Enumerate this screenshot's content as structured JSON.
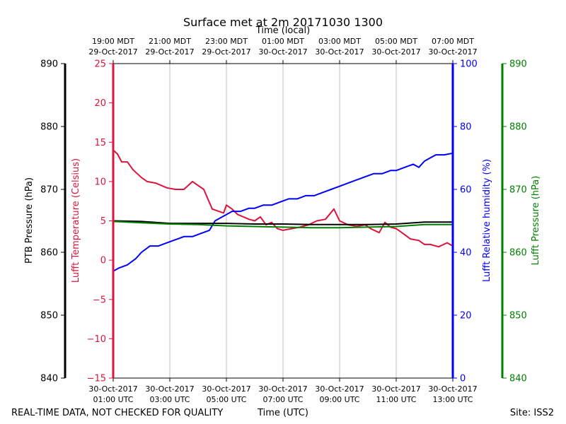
{
  "chart_data": {
    "type": "line",
    "title": "Surface met at 2m 20171030 1300",
    "top_axis_label": "Time (local)",
    "top_ticks": [
      [
        "19:00 MDT",
        "29-Oct-2017"
      ],
      [
        "21:00 MDT",
        "29-Oct-2017"
      ],
      [
        "23:00 MDT",
        "29-Oct-2017"
      ],
      [
        "01:00 MDT",
        "30-Oct-2017"
      ],
      [
        "03:00 MDT",
        "30-Oct-2017"
      ],
      [
        "05:00 MDT",
        "30-Oct-2017"
      ],
      [
        "07:00 MDT",
        "30-Oct-2017"
      ]
    ],
    "bottom_ticks": [
      [
        "30-Oct-2017",
        "01:00 UTC"
      ],
      [
        "30-Oct-2017",
        "03:00 UTC"
      ],
      [
        "30-Oct-2017",
        "05:00 UTC"
      ],
      [
        "30-Oct-2017",
        "07:00 UTC"
      ],
      [
        "30-Oct-2017",
        "09:00 UTC"
      ],
      [
        "30-Oct-2017",
        "11:00 UTC"
      ],
      [
        "30-Oct-2017",
        "13:00 UTC"
      ]
    ],
    "xlabel": "Time (UTC)",
    "xlim": [
      1,
      13
    ],
    "grid": "vertical",
    "axes": {
      "ptb": {
        "label": "PTB Pressure (hPa)",
        "color": "#000000",
        "ylim": [
          840,
          890
        ],
        "ticks": [
          840,
          850,
          860,
          870,
          880,
          890
        ]
      },
      "temp": {
        "label": "Lufft Temperature (Celsius)",
        "color": "#dc143c",
        "ylim": [
          -15,
          25
        ],
        "ticks": [
          -15,
          -10,
          -5,
          0,
          5,
          10,
          15,
          20,
          25
        ],
        "tick_labels": [
          "−15",
          "−10",
          "−5",
          "0",
          "5",
          "10",
          "15",
          "20",
          "25"
        ]
      },
      "rh": {
        "label": "Lufft Relative humidity (%)",
        "color": "#0000ff",
        "ylim": [
          0,
          100
        ],
        "ticks": [
          0,
          20,
          40,
          60,
          80,
          100
        ]
      },
      "lufft_p": {
        "label": "Lufft Pressure (hPa)",
        "color": "#008000",
        "ylim": [
          840,
          890
        ],
        "ticks": [
          840,
          850,
          860,
          870,
          880,
          890
        ]
      }
    },
    "series": [
      {
        "axis": "temp",
        "color": "#dc143c",
        "x": [
          1.0,
          1.15,
          1.3,
          1.5,
          1.7,
          2.0,
          2.2,
          2.5,
          2.9,
          3.2,
          3.5,
          3.8,
          4.2,
          4.5,
          4.9,
          5.0,
          5.2,
          5.4,
          5.6,
          5.8,
          6.0,
          6.2,
          6.4,
          6.6,
          6.8,
          7.0,
          7.3,
          7.6,
          7.9,
          8.2,
          8.5,
          8.8,
          9.0,
          9.3,
          9.6,
          9.9,
          10.1,
          10.4,
          10.6,
          10.8,
          11.0,
          11.2,
          11.5,
          11.8,
          12.0,
          12.2,
          12.5,
          12.8,
          13.0
        ],
        "y": [
          14.0,
          13.5,
          12.5,
          12.5,
          11.5,
          10.5,
          10.0,
          9.8,
          9.2,
          9.0,
          9.0,
          10.0,
          9.0,
          6.5,
          6.0,
          7.0,
          6.5,
          5.8,
          5.5,
          5.2,
          5.0,
          5.5,
          4.5,
          4.8,
          4.0,
          3.8,
          4.0,
          4.2,
          4.5,
          5.0,
          5.2,
          6.5,
          5.0,
          4.5,
          4.3,
          4.5,
          4.0,
          3.5,
          4.8,
          4.2,
          4.0,
          3.5,
          2.7,
          2.5,
          2.0,
          2.0,
          1.7,
          2.2,
          1.8
        ]
      },
      {
        "axis": "rh",
        "color": "#0000ff",
        "x": [
          1.0,
          1.2,
          1.5,
          1.8,
          2.0,
          2.3,
          2.6,
          2.9,
          3.2,
          3.5,
          3.8,
          4.1,
          4.4,
          4.6,
          4.8,
          5.0,
          5.2,
          5.5,
          5.8,
          6.0,
          6.3,
          6.6,
          6.9,
          7.2,
          7.5,
          7.8,
          8.1,
          8.4,
          8.7,
          9.0,
          9.3,
          9.6,
          9.9,
          10.2,
          10.5,
          10.8,
          11.0,
          11.3,
          11.6,
          11.8,
          12.0,
          12.2,
          12.4,
          12.7,
          13.0
        ],
        "y": [
          34,
          35,
          36,
          38,
          40,
          42,
          42,
          43,
          44,
          45,
          45,
          46,
          47,
          50,
          51,
          52,
          53,
          53,
          54,
          54,
          55,
          55,
          56,
          57,
          57,
          58,
          58,
          59,
          60,
          61,
          62,
          63,
          64,
          65,
          65,
          66,
          66,
          67,
          68,
          67,
          69,
          70,
          71,
          71,
          71.5
        ]
      },
      {
        "axis": "ptb",
        "color": "#000000",
        "x": [
          1.0,
          2.0,
          3.0,
          4.0,
          5.0,
          6.0,
          7.0,
          8.0,
          9.0,
          10.0,
          11.0,
          12.0,
          13.0
        ],
        "y": [
          865.0,
          864.9,
          864.6,
          864.6,
          864.6,
          864.5,
          864.5,
          864.4,
          864.4,
          864.4,
          864.5,
          864.8,
          864.8
        ]
      },
      {
        "axis": "lufft_p",
        "color": "#008000",
        "x": [
          1.0,
          2.0,
          3.0,
          4.0,
          5.0,
          6.0,
          7.0,
          8.0,
          9.0,
          10.0,
          11.0,
          12.0,
          13.0
        ],
        "y": [
          864.9,
          864.7,
          864.5,
          864.4,
          864.2,
          864.1,
          864.0,
          863.9,
          863.9,
          864.0,
          864.1,
          864.4,
          864.4
        ]
      }
    ]
  },
  "footer": {
    "left": "REAL-TIME DATA, NOT CHECKED FOR QUALITY",
    "right": "Site: ISS2"
  }
}
